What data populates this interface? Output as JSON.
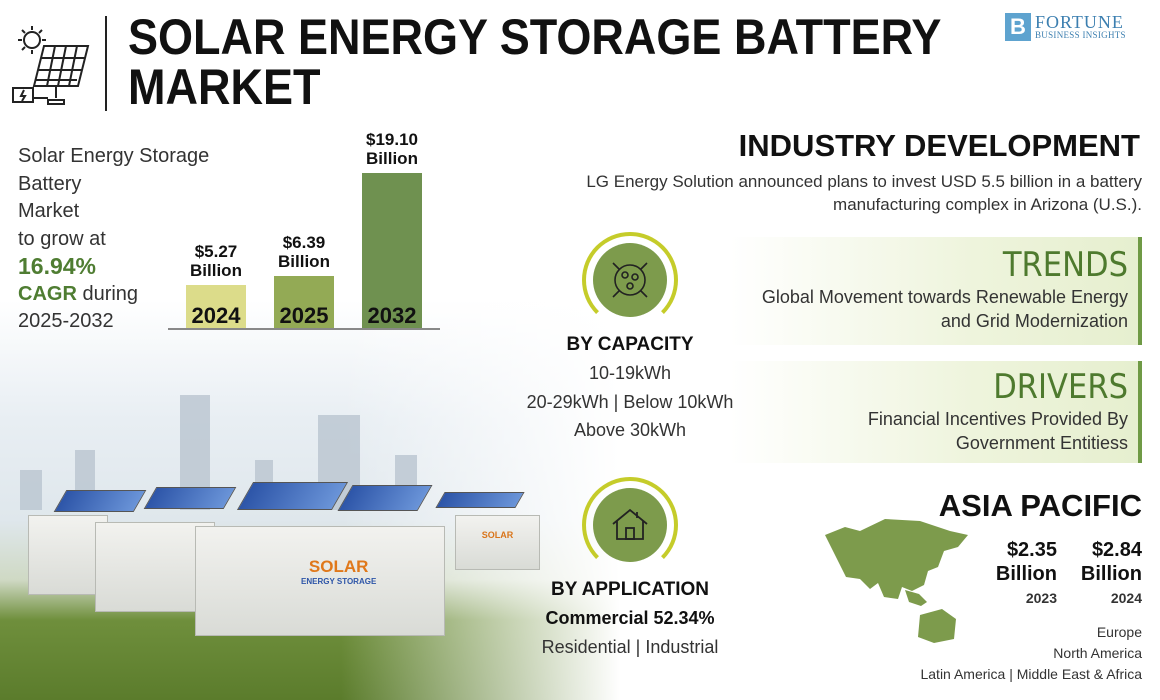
{
  "header": {
    "title_line1": "SOLAR ENERGY STORAGE BATTERY",
    "title_line2": "MARKET",
    "logo_line1": "FORTUNE",
    "logo_line2": "BUSINESS INSIGHTS",
    "logo_mark": "B"
  },
  "summary": {
    "line1": "Solar Energy Storage",
    "line2": "Battery",
    "line3": "Market",
    "line4": "to grow at",
    "cagr": "16.94%",
    "cagr_label": "CAGR",
    "during": " during",
    "period": "2025-2032"
  },
  "chart_data": {
    "type": "bar",
    "categories": [
      "2024",
      "2025",
      "2032"
    ],
    "values": [
      5.27,
      6.39,
      19.1
    ],
    "value_labels": [
      "$5.27",
      "$6.39",
      "$19.10"
    ],
    "unit_label": "Billion",
    "colors": [
      "#dcdc8a",
      "#93aa55",
      "#6f9150"
    ],
    "ylim": [
      0,
      20
    ],
    "title": "",
    "xlabel": "",
    "ylabel": ""
  },
  "industry": {
    "heading": "INDUSTRY DEVELOPMENT",
    "text_line1": "LG Energy Solution announced plans to invest USD 5.5 billion in a battery",
    "text_line2": "manufacturing complex in Arizona (U.S.)."
  },
  "trends": {
    "heading": "TRENDS",
    "line1": "Global Movement towards Renewable Energy",
    "line2": "and Grid Modernization"
  },
  "drivers": {
    "heading": "DRIVERS",
    "line1": "Financial Incentives Provided By",
    "line2": "Government Entitiess"
  },
  "capacity": {
    "heading": "BY CAPACITY",
    "line1": "10-19kWh",
    "line2": "20-29kWh  |  Below 10kWh",
    "line3": "Above 30kWh"
  },
  "application": {
    "heading": "BY APPLICATION",
    "line1": "Commercial 52.34%",
    "line2": "Residential  |  Industrial"
  },
  "region": {
    "heading": "ASIA PACIFIC",
    "values": [
      {
        "amount": "$2.35",
        "unit": "Billion",
        "year": "2023"
      },
      {
        "amount": "$2.84",
        "unit": "Billion",
        "year": "2024"
      }
    ],
    "others": [
      "Europe",
      "North America",
      "Latin America  |  Middle East & Africa"
    ]
  },
  "scene": {
    "container_label1": "SOLAR",
    "container_label2": "ENERGY STORAGE"
  }
}
